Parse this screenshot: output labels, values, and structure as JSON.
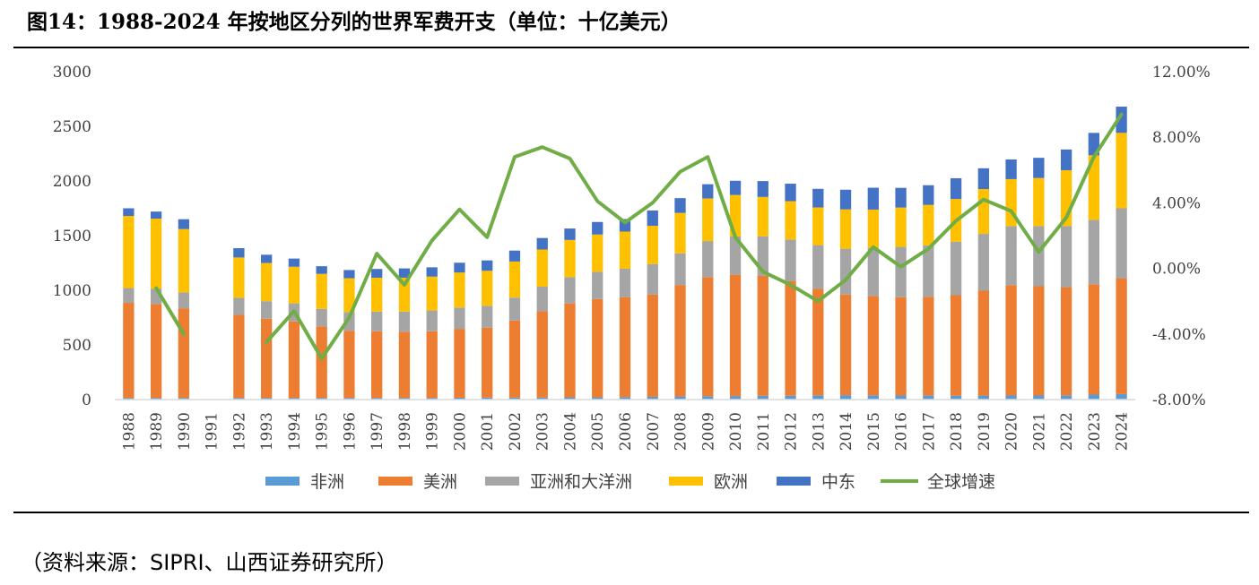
{
  "figure": {
    "title": "图14：1988-2024 年按地区分列的世界军费开支（单位：十亿美元）",
    "source": "（资料来源：SIPRI、山西证券研究所）"
  },
  "colors": {
    "africa": "#5B9BD5",
    "americas": "#ED7D31",
    "asia_oceania": "#A5A5A5",
    "europe": "#FFC000",
    "middle_east": "#4472C4",
    "growth": "#70AD47"
  },
  "chart_data": {
    "type": "bar",
    "stacked": true,
    "title": "",
    "xlabel": "",
    "ylabel": "",
    "y_ticks": [
      "0",
      "500",
      "1000",
      "1500",
      "2000",
      "2500",
      "3000"
    ],
    "y2_ticks": [
      "-8.00%",
      "-4.00%",
      "0.00%",
      "4.00%",
      "8.00%",
      "12.00%"
    ],
    "ylim": [
      0,
      3000
    ],
    "y2lim": [
      -8,
      12
    ],
    "legend_position": "bottom",
    "grid": false,
    "categories": [
      "1988",
      "1989",
      "1990",
      "1991",
      "1992",
      "1993",
      "1994",
      "1995",
      "1996",
      "1997",
      "1998",
      "1999",
      "2000",
      "2001",
      "2002",
      "2003",
      "2004",
      "2005",
      "2006",
      "2007",
      "2008",
      "2009",
      "2010",
      "2011",
      "2012",
      "2013",
      "2014",
      "2015",
      "2016",
      "2017",
      "2018",
      "2019",
      "2020",
      "2021",
      "2022",
      "2023",
      "2024"
    ],
    "series": [
      {
        "name": "非洲",
        "key": "africa",
        "values": [
          15,
          15,
          15,
          null,
          15,
          15,
          15,
          15,
          15,
          15,
          15,
          15,
          17,
          18,
          18,
          18,
          20,
          20,
          22,
          25,
          28,
          30,
          32,
          34,
          35,
          38,
          40,
          38,
          37,
          36,
          35,
          36,
          37,
          37,
          38,
          45,
          50
        ]
      },
      {
        "name": "美洲",
        "key": "americas",
        "values": [
          870,
          860,
          820,
          null,
          760,
          725,
          700,
          655,
          615,
          610,
          605,
          610,
          630,
          640,
          705,
          790,
          860,
          900,
          915,
          935,
          1020,
          1090,
          1110,
          1100,
          1050,
          975,
          920,
          910,
          900,
          905,
          920,
          960,
          1010,
          1000,
          990,
          1010,
          1060
        ]
      },
      {
        "name": "亚洲和大洋洲",
        "key": "asia_oceania",
        "values": [
          135,
          140,
          145,
          null,
          155,
          160,
          165,
          160,
          170,
          180,
          185,
          190,
          195,
          200,
          210,
          225,
          240,
          250,
          260,
          280,
          290,
          330,
          350,
          360,
          380,
          400,
          420,
          440,
          460,
          470,
          490,
          520,
          540,
          550,
          560,
          590,
          640
        ]
      },
      {
        "name": "欧洲",
        "key": "europe",
        "values": [
          660,
          640,
          580,
          null,
          370,
          350,
          335,
          320,
          310,
          310,
          310,
          310,
          320,
          320,
          330,
          340,
          340,
          340,
          340,
          350,
          370,
          390,
          380,
          360,
          350,
          345,
          360,
          350,
          360,
          370,
          390,
          410,
          430,
          440,
          510,
          590,
          690
        ]
      },
      {
        "name": "中东",
        "key": "middle_east",
        "values": [
          70,
          65,
          90,
          null,
          85,
          75,
          75,
          70,
          75,
          80,
          85,
          85,
          90,
          95,
          100,
          105,
          105,
          115,
          115,
          140,
          135,
          130,
          130,
          145,
          160,
          170,
          180,
          200,
          180,
          180,
          190,
          190,
          180,
          185,
          190,
          205,
          240
        ]
      }
    ],
    "line": {
      "name": "全球增速",
      "key": "growth",
      "values": [
        null,
        -1.2,
        -4.0,
        null,
        null,
        -4.5,
        -2.6,
        -5.5,
        -3.0,
        0.9,
        -1.0,
        1.7,
        3.6,
        1.9,
        6.8,
        7.4,
        6.7,
        4.1,
        2.8,
        4.0,
        5.9,
        6.8,
        1.9,
        -0.2,
        -1.0,
        -2.0,
        -0.7,
        1.3,
        0.1,
        1.2,
        2.9,
        4.2,
        3.5,
        1.0,
        3.1,
        6.8,
        9.4
      ]
    }
  }
}
